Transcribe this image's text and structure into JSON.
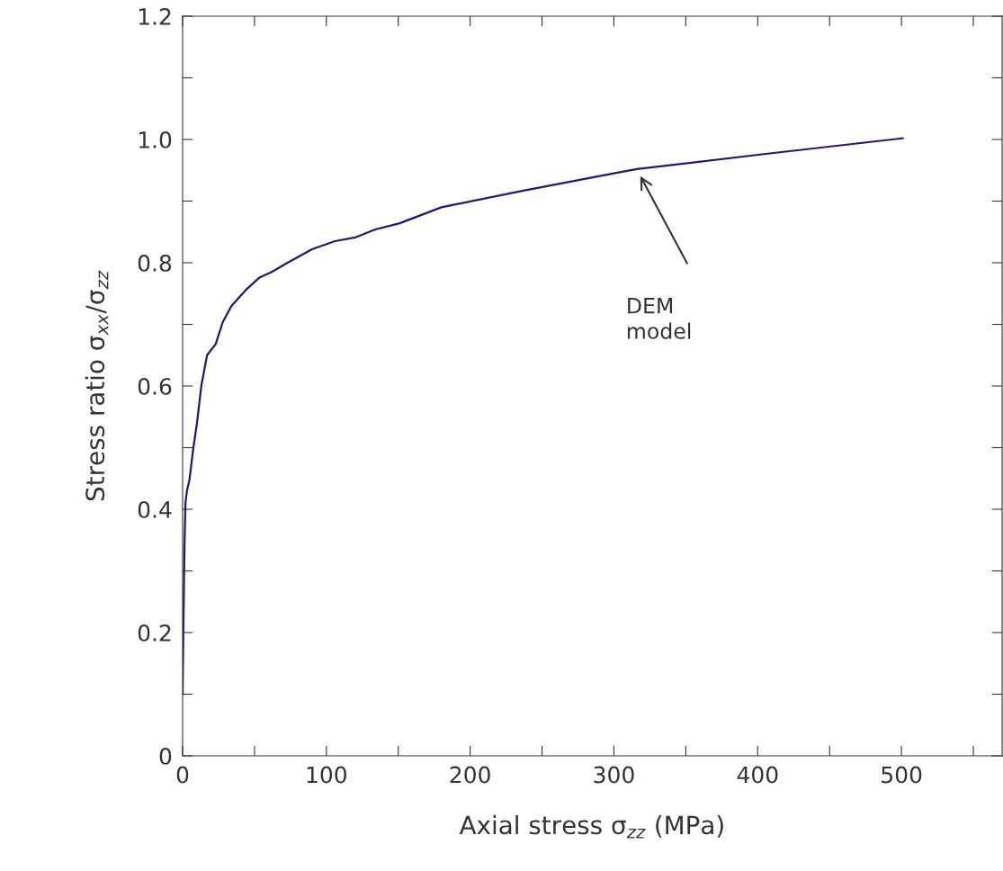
{
  "chart_data": {
    "type": "line",
    "xlabel": "Axial stress σ$_{zz}$ (MPa)",
    "ylabel": "Stress ratio σ$_{xx}$/σ$_{zz}$",
    "x": [
      0,
      0.5,
      1.2,
      1.5,
      2,
      3,
      4.7,
      7.5,
      10,
      13,
      17,
      23,
      28,
      34,
      44,
      53.5,
      62,
      73,
      90,
      106,
      120,
      134,
      151,
      180,
      237,
      300,
      316,
      407,
      501
    ],
    "series": [
      {
        "color": "#1c1c6e",
        "values": [
          0.1,
          0.2,
          0.32,
          0.36,
          0.41,
          0.43,
          0.447,
          0.5,
          0.54,
          0.6,
          0.65,
          0.668,
          0.704,
          0.73,
          0.756,
          0.776,
          0.785,
          0.8,
          0.822,
          0.835,
          0.841,
          0.854,
          0.864,
          0.89,
          0.917,
          0.945,
          0.952,
          0.977,
          1.002
        ]
      }
    ],
    "annotations": [
      "DEM\nmodel"
    ],
    "xlim": [
      0,
      570
    ],
    "ylim": [
      0,
      1.2
    ],
    "xticks": [
      0,
      {
        "value": 50,
        "label": null
      },
      100,
      {
        "value": 150,
        "label": null
      },
      200,
      {
        "value": 250,
        "label": null
      },
      300,
      {
        "value": 350,
        "label": null
      },
      400,
      {
        "value": 450,
        "label": null
      },
      500,
      {
        "value": 550,
        "label": null
      }
    ],
    "yticks": [
      0,
      {
        "value": 0.1,
        "label": null
      },
      {
        "value": 0.2,
        "label": "0.2"
      },
      {
        "value": 0.3,
        "label": null
      },
      {
        "value": 0.4,
        "label": "0.4"
      },
      {
        "value": 0.5,
        "label": null
      },
      {
        "value": 0.6,
        "label": "0.6"
      },
      {
        "value": 0.7,
        "label": null
      },
      {
        "value": 0.8,
        "label": "0.8"
      },
      {
        "value": 0.9,
        "label": null
      },
      {
        "value": 1.0,
        "label": "1.0"
      },
      {
        "value": 1.1,
        "label": null
      },
      {
        "value": 1.2,
        "label": "1.2"
      }
    ],
    "grid": false,
    "legend": false,
    "marker": "none",
    "line_style": "solid"
  }
}
